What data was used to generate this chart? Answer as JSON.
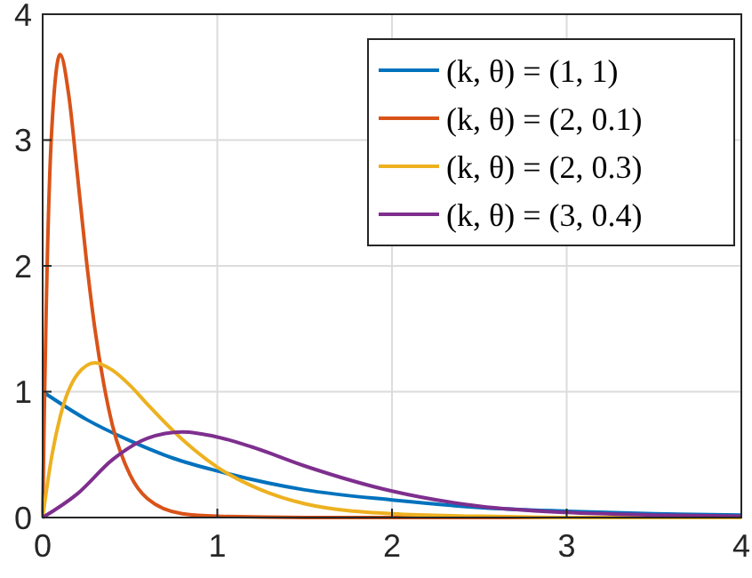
{
  "chart_data": {
    "type": "line",
    "xlim": [
      0,
      4
    ],
    "ylim": [
      0,
      4
    ],
    "xticks": [
      0,
      1,
      2,
      3,
      4
    ],
    "yticks": [
      0,
      1,
      2,
      3,
      4
    ],
    "grid": true,
    "legend": "top right",
    "line_style": "solid",
    "marker": "none",
    "series": [
      {
        "name": "(k, θ) = (1, 1)",
        "color": "#0072bd",
        "x": [
          0,
          0.25,
          0.5,
          0.75,
          1,
          1.5,
          2,
          2.5,
          3,
          3.5,
          4
        ],
        "values": [
          1,
          0.78,
          0.61,
          0.47,
          0.37,
          0.22,
          0.14,
          0.08,
          0.05,
          0.03,
          0.02
        ]
      },
      {
        "name": "(k, θ) = (2, 0.1)",
        "color": "#d95319",
        "x": [
          0,
          0.01,
          0.02,
          0.05,
          0.1,
          0.15,
          0.2,
          0.25,
          0.3,
          0.35,
          0.4,
          0.5,
          0.6,
          0.8,
          1,
          1.5,
          4
        ],
        "values": [
          0,
          0.9,
          1.64,
          3.03,
          3.68,
          3.35,
          2.71,
          2.05,
          1.49,
          1.06,
          0.73,
          0.34,
          0.15,
          0.03,
          0.01,
          0,
          0
        ]
      },
      {
        "name": "(k, θ) = (2, 0.3)",
        "color": "#edb120",
        "x": [
          0,
          0.05,
          0.1,
          0.2,
          0.3,
          0.4,
          0.5,
          0.6,
          0.8,
          1,
          1.25,
          1.5,
          2,
          2.5,
          3,
          4
        ],
        "values": [
          0,
          0.47,
          0.8,
          1.14,
          1.23,
          1.17,
          1.05,
          0.9,
          0.62,
          0.4,
          0.22,
          0.11,
          0.03,
          0.01,
          0,
          0
        ]
      },
      {
        "name": "(k, θ) = (3, 0.4)",
        "color": "#7e2f8e",
        "x": [
          0,
          0.2,
          0.4,
          0.6,
          0.8,
          1,
          1.2,
          1.5,
          2,
          2.5,
          3,
          3.5,
          4
        ],
        "values": [
          0,
          0.19,
          0.46,
          0.63,
          0.68,
          0.64,
          0.56,
          0.41,
          0.21,
          0.09,
          0.04,
          0.02,
          0.01
        ]
      }
    ]
  }
}
